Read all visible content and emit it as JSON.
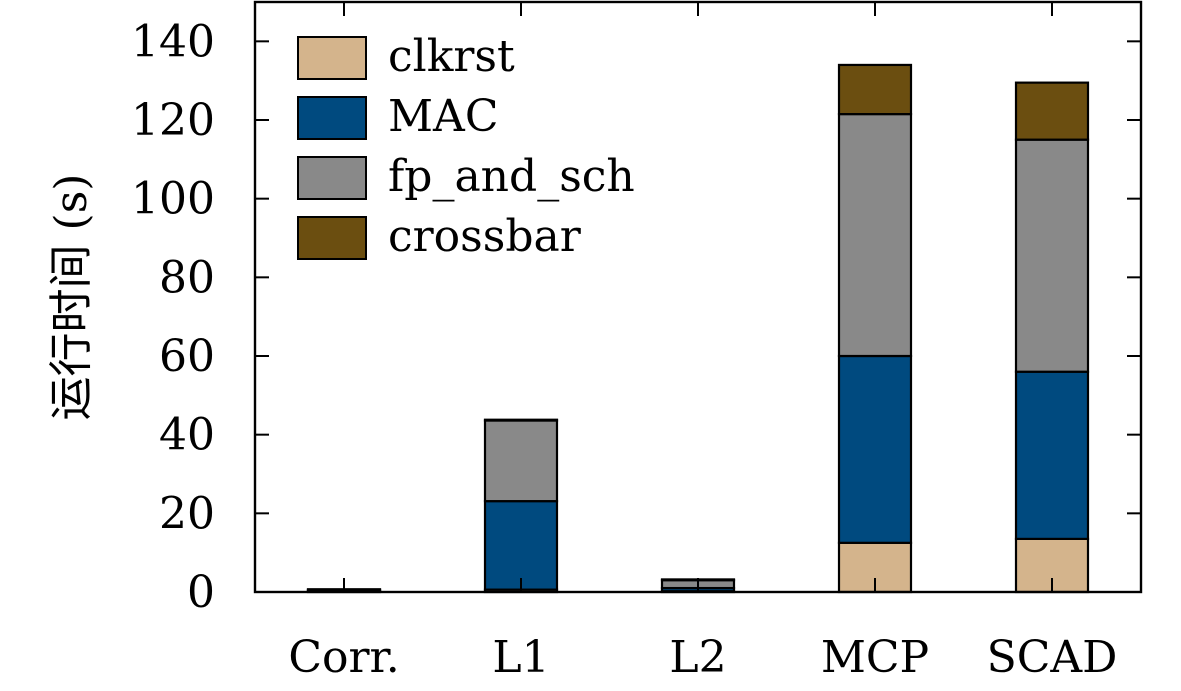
{
  "chart_data": {
    "type": "bar",
    "stacked": true,
    "categories": [
      "Corr.",
      "L1",
      "L2",
      "MCP",
      "SCAD"
    ],
    "series": [
      {
        "name": "clkrst",
        "color": "#d4b48c",
        "values": [
          0.2,
          0.6,
          0.2,
          12.5,
          13.5
        ]
      },
      {
        "name": "MAC",
        "color": "#004a7f",
        "values": [
          0.2,
          22.5,
          0.8,
          47.5,
          42.5
        ]
      },
      {
        "name": "fp_and_sch",
        "color": "#898989",
        "values": [
          0.2,
          20.5,
          2.0,
          61.5,
          59.0
        ]
      },
      {
        "name": "crossbar",
        "color": "#6b4e10",
        "values": [
          0.1,
          0.2,
          0.2,
          12.5,
          14.5
        ]
      }
    ],
    "xlabel": "",
    "ylabel": "运行时间 (s)",
    "ylim": [
      0,
      150
    ],
    "yticks": [
      0,
      20,
      40,
      60,
      80,
      100,
      120,
      140
    ],
    "grid": false,
    "legend_position": "top-left"
  }
}
